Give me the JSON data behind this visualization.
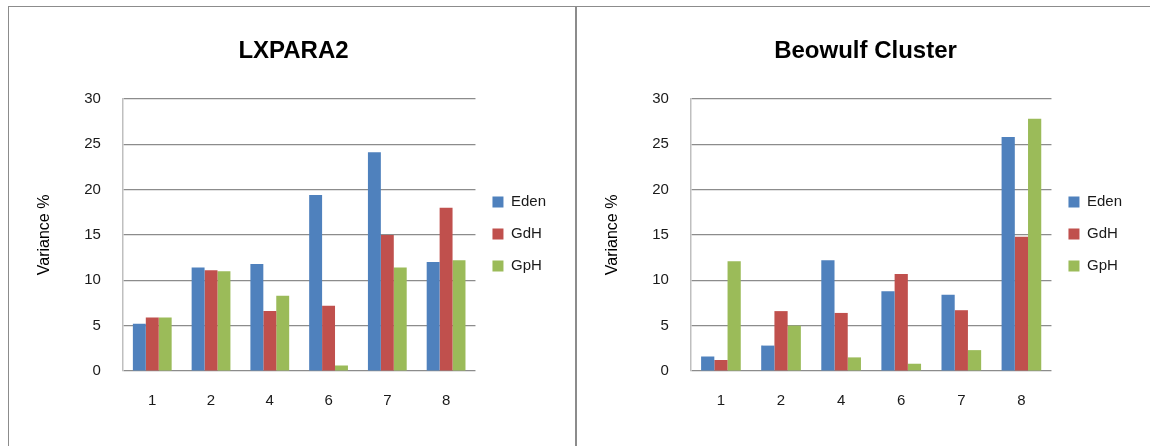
{
  "chart_data": [
    {
      "type": "bar",
      "title": "LXPARA2",
      "ylabel": "Variance %",
      "categories": [
        "1",
        "2",
        "4",
        "6",
        "7",
        "8"
      ],
      "series": [
        {
          "name": "Eden",
          "color": "#4f81bd",
          "values": [
            5.2,
            11.4,
            11.8,
            19.4,
            24.1,
            12.0
          ]
        },
        {
          "name": "GdH",
          "color": "#c0504d",
          "values": [
            5.9,
            11.1,
            6.6,
            7.2,
            15.0,
            18.0
          ]
        },
        {
          "name": "GpH",
          "color": "#9bbb59",
          "values": [
            5.9,
            11.0,
            8.3,
            0.6,
            11.4,
            12.2
          ]
        }
      ],
      "ylim": [
        0,
        30
      ],
      "yticks": [
        0,
        5,
        10,
        15,
        20,
        25,
        30
      ],
      "grid": "y",
      "legend": "right"
    },
    {
      "type": "bar",
      "title": "Beowulf Cluster",
      "ylabel": "Variance %",
      "categories": [
        "1",
        "2",
        "4",
        "6",
        "7",
        "8"
      ],
      "series": [
        {
          "name": "Eden",
          "color": "#4f81bd",
          "values": [
            1.6,
            2.8,
            12.2,
            8.8,
            8.4,
            25.8
          ]
        },
        {
          "name": "GdH",
          "color": "#c0504d",
          "values": [
            1.2,
            6.6,
            6.4,
            10.7,
            6.7,
            14.8
          ]
        },
        {
          "name": "GpH",
          "color": "#9bbb59",
          "values": [
            12.1,
            5.0,
            1.5,
            0.8,
            2.3,
            27.8
          ]
        }
      ],
      "ylim": [
        0,
        30
      ],
      "yticks": [
        0,
        5,
        10,
        15,
        20,
        25,
        30
      ],
      "grid": "y",
      "legend": "right"
    }
  ]
}
